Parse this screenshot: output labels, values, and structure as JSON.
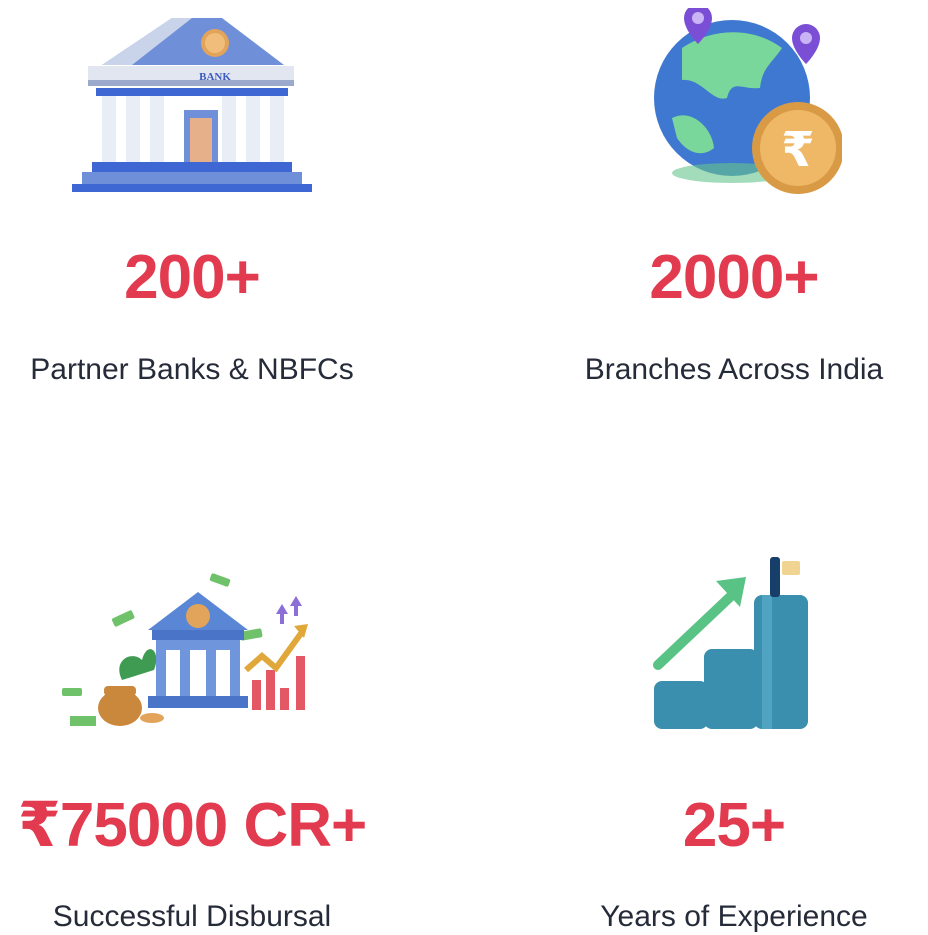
{
  "stats": [
    {
      "value": "200+",
      "label": "Partner Banks & NBFCs",
      "icon": "bank-building-icon"
    },
    {
      "value": "2000+",
      "label": "Branches Across India",
      "icon": "globe-rupee-icon"
    },
    {
      "value": "₹75000 CR+",
      "label": "Successful Disbursal",
      "icon": "bank-money-growth-icon"
    },
    {
      "value": "25+",
      "label": "Years of Experience",
      "icon": "growth-chart-icon"
    }
  ],
  "bank_sign": "BANK",
  "colors": {
    "accent": "#e23a4f",
    "text": "#262b3a"
  }
}
